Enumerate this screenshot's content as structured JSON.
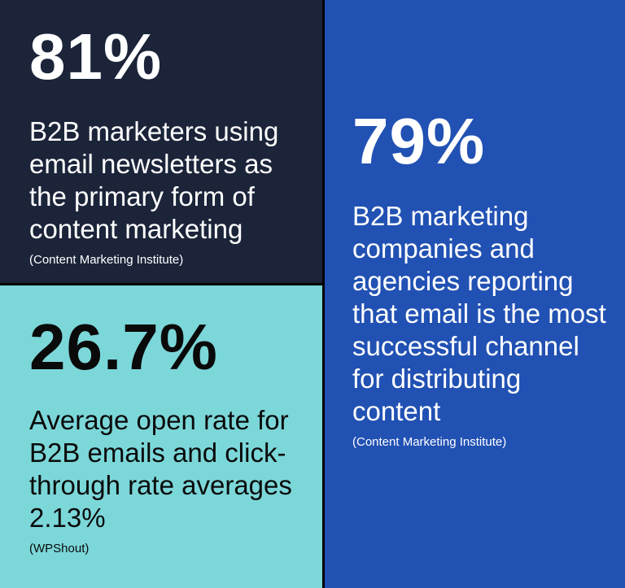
{
  "tiles": {
    "top_left": {
      "stat": "81%",
      "description": "B2B marketers using email newsletters as the primary form of content marketing",
      "source": "(Content Marketing Institute)",
      "background": "#1b2439"
    },
    "bottom_left": {
      "stat": "26.7%",
      "description": "Average open rate for B2B emails and click-through rate averages 2.13%",
      "source": "(WPShout)",
      "background": "#7cd7d9"
    },
    "right": {
      "stat": "79%",
      "description": "B2B marketing companies and agencies reporting that email is the most successful channel for distributing content",
      "source": "(Content Marketing Institute)",
      "background": "#2151b3"
    }
  }
}
